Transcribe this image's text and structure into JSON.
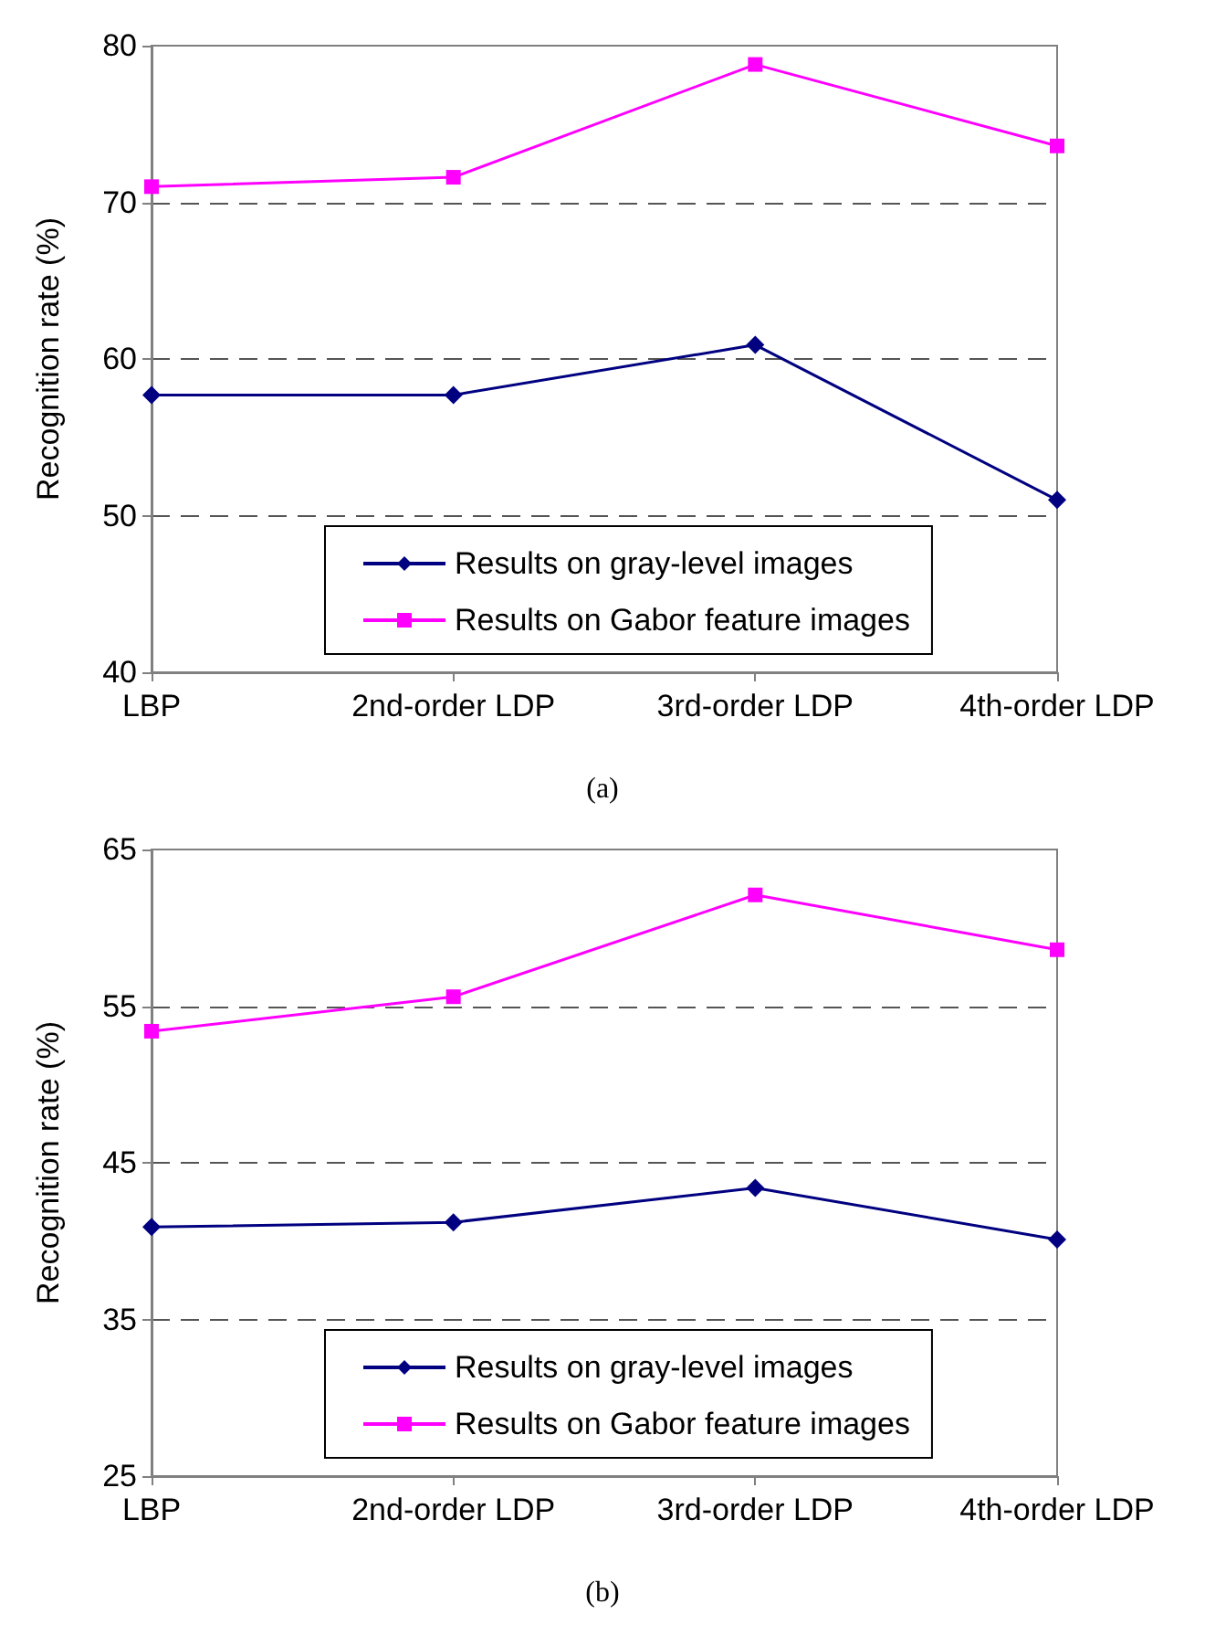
{
  "chart_data": [
    {
      "type": "line",
      "ylabel": "Recognition rate (%)",
      "categories": [
        "LBP",
        "2nd-order LDP",
        "3rd-order LDP",
        "4th-order LDP"
      ],
      "series": [
        {
          "name": "Results on gray-level images",
          "color": "#000080",
          "marker": "diamond",
          "values": [
            57.7,
            57.7,
            60.9,
            51.0
          ]
        },
        {
          "name": "Results on Gabor feature images",
          "color": "#ff00ff",
          "marker": "square",
          "values": [
            71.0,
            71.6,
            78.8,
            73.6
          ]
        }
      ],
      "ylim": [
        40,
        80
      ],
      "yticks": [
        40,
        50,
        60,
        70,
        80
      ],
      "grid": "y",
      "legend": "bottom",
      "annotations": [
        "(a)"
      ]
    },
    {
      "type": "line",
      "ylabel": "Recognition rate (%)",
      "categories": [
        "LBP",
        "2nd-order LDP",
        "3rd-order LDP",
        "4th-order LDP"
      ],
      "series": [
        {
          "name": "Results on gray-level images",
          "color": "#000080",
          "marker": "diamond",
          "values": [
            40.9,
            41.2,
            43.4,
            40.1
          ]
        },
        {
          "name": "Results on Gabor feature images",
          "color": "#ff00ff",
          "marker": "square",
          "values": [
            53.4,
            55.6,
            62.1,
            58.6
          ]
        }
      ],
      "ylim": [
        25,
        65
      ],
      "yticks": [
        25,
        35,
        45,
        55,
        65
      ],
      "grid": "y",
      "legend": "bottom",
      "annotations": [
        "(b)"
      ]
    }
  ]
}
